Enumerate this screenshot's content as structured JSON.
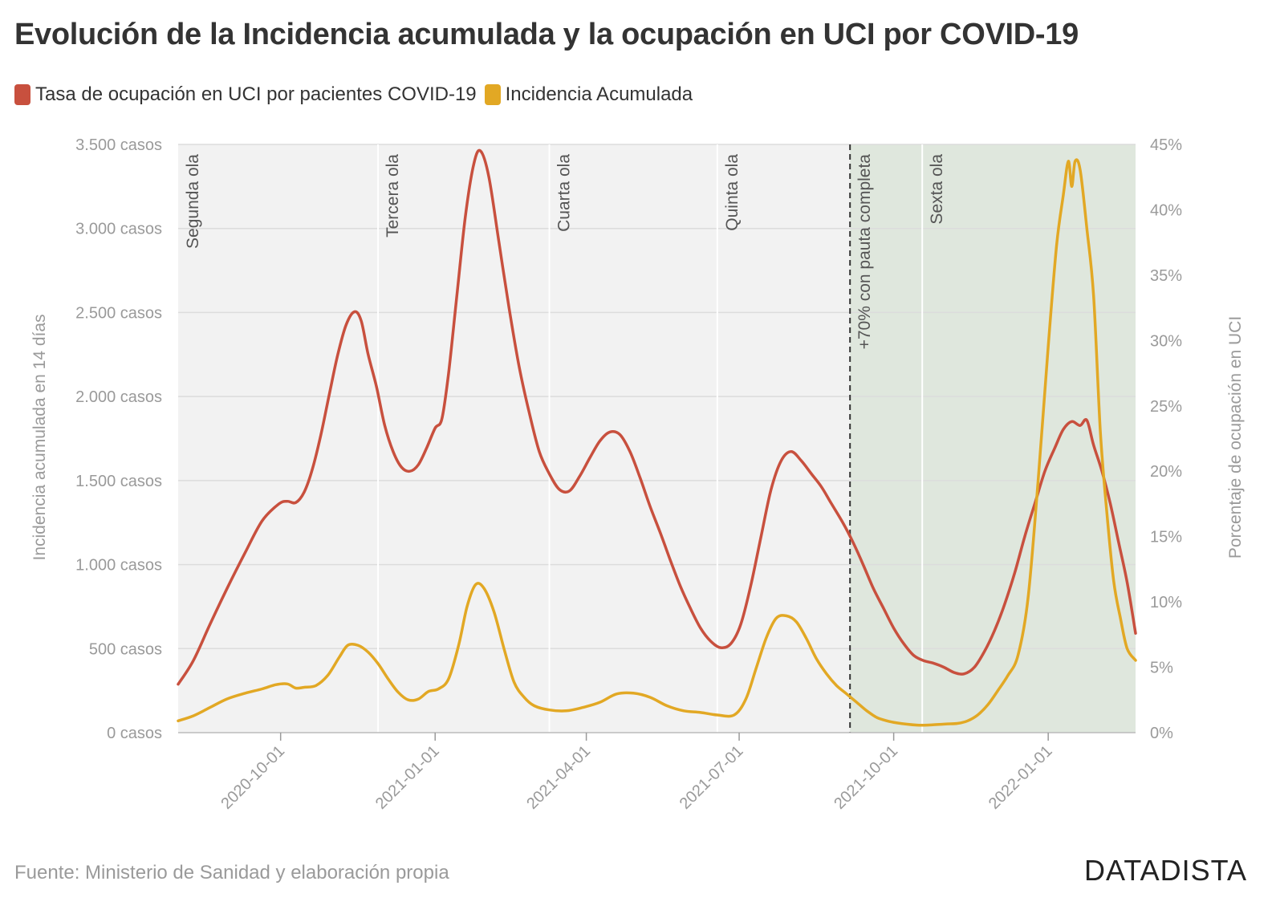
{
  "title": "Evolución de la Incidencia acumulada y la ocupación en UCI por COVID-19",
  "source": "Fuente: Ministerio de Sanidad y elaboración propia",
  "brand": "DATADISTA",
  "colors": {
    "uci": "#c8503e",
    "ia": "#e2a824",
    "plot_bg": "#f2f2f2",
    "shade_bg": "#dfe7dd",
    "grid": "#dcdcdc"
  },
  "chart_data": {
    "type": "line",
    "title": "Evolución de la Incidencia acumulada y la ocupación en UCI por COVID-19",
    "xlabel": "",
    "ylabel_left": "Incidencia acumulada en 14 días",
    "ylabel_right": "Porcentaje de ocupación en UCI",
    "xlim": [
      "2020-08-01",
      "2022-02-22"
    ],
    "ylim_left": [
      0,
      3500
    ],
    "ylim_right": [
      0,
      45
    ],
    "grid": true,
    "legend_position": "top-left",
    "x_ticks": [
      "2020-10-01",
      "2021-01-01",
      "2021-04-01",
      "2021-07-01",
      "2021-10-01",
      "2022-01-01"
    ],
    "y_ticks_left": [
      {
        "value": 0,
        "label": "0 casos"
      },
      {
        "value": 500,
        "label": "500 casos"
      },
      {
        "value": 1000,
        "label": "1.000 casos"
      },
      {
        "value": 1500,
        "label": "1.500 casos"
      },
      {
        "value": 2000,
        "label": "2.000 casos"
      },
      {
        "value": 2500,
        "label": "2.500 casos"
      },
      {
        "value": 3000,
        "label": "3.000 casos"
      },
      {
        "value": 3500,
        "label": "3.500 casos"
      }
    ],
    "y_ticks_right": [
      {
        "value": 0,
        "label": "0%"
      },
      {
        "value": 5,
        "label": "5%"
      },
      {
        "value": 10,
        "label": "10%"
      },
      {
        "value": 15,
        "label": "15%"
      },
      {
        "value": 20,
        "label": "20%"
      },
      {
        "value": 25,
        "label": "25%"
      },
      {
        "value": 30,
        "label": "30%"
      },
      {
        "value": 35,
        "label": "35%"
      },
      {
        "value": 40,
        "label": "40%"
      },
      {
        "value": 45,
        "label": "45%"
      }
    ],
    "shaded_region": {
      "start": "2021-09-05",
      "end": "2022-02-22"
    },
    "annotations": [
      {
        "date": "2020-08-01",
        "label": "Segunda ola",
        "style": "solid"
      },
      {
        "date": "2020-11-28",
        "label": "Tercera ola",
        "style": "solid"
      },
      {
        "date": "2021-03-10",
        "label": "Cuarta ola",
        "style": "solid"
      },
      {
        "date": "2021-06-18",
        "label": "Quinta ola",
        "style": "solid"
      },
      {
        "date": "2021-09-05",
        "label": "+70% con pauta completa",
        "style": "dashed"
      },
      {
        "date": "2021-10-18",
        "label": "Sexta ola",
        "style": "solid"
      }
    ],
    "series": [
      {
        "name": "Tasa de ocupación en UCI por pacientes COVID-19",
        "axis": "right",
        "color": "#c8503e",
        "points": [
          [
            "2020-08-01",
            3.7
          ],
          [
            "2020-08-10",
            5.5
          ],
          [
            "2020-08-20",
            8.3
          ],
          [
            "2020-08-30",
            11.0
          ],
          [
            "2020-09-10",
            13.8
          ],
          [
            "2020-09-20",
            16.2
          ],
          [
            "2020-09-30",
            17.5
          ],
          [
            "2020-10-05",
            17.7
          ],
          [
            "2020-10-10",
            17.6
          ],
          [
            "2020-10-15",
            18.4
          ],
          [
            "2020-10-20",
            20.2
          ],
          [
            "2020-10-25",
            22.8
          ],
          [
            "2020-10-30",
            25.9
          ],
          [
            "2020-11-04",
            28.9
          ],
          [
            "2020-11-09",
            31.2
          ],
          [
            "2020-11-14",
            32.2
          ],
          [
            "2020-11-18",
            31.5
          ],
          [
            "2020-11-22",
            29.0
          ],
          [
            "2020-11-27",
            26.5
          ],
          [
            "2020-12-02",
            23.5
          ],
          [
            "2020-12-07",
            21.5
          ],
          [
            "2020-12-12",
            20.3
          ],
          [
            "2020-12-17",
            20.0
          ],
          [
            "2020-12-22",
            20.5
          ],
          [
            "2020-12-27",
            21.8
          ],
          [
            "2021-01-01",
            23.3
          ],
          [
            "2021-01-05",
            24.0
          ],
          [
            "2021-01-09",
            27.5
          ],
          [
            "2021-01-14",
            33.5
          ],
          [
            "2021-01-19",
            39.5
          ],
          [
            "2021-01-24",
            43.5
          ],
          [
            "2021-01-28",
            44.5
          ],
          [
            "2021-02-02",
            42.5
          ],
          [
            "2021-02-08",
            37.5
          ],
          [
            "2021-02-14",
            32.5
          ],
          [
            "2021-02-20",
            28.0
          ],
          [
            "2021-02-26",
            24.5
          ],
          [
            "2021-03-04",
            21.5
          ],
          [
            "2021-03-10",
            19.8
          ],
          [
            "2021-03-16",
            18.6
          ],
          [
            "2021-03-22",
            18.5
          ],
          [
            "2021-03-28",
            19.6
          ],
          [
            "2021-04-03",
            21.0
          ],
          [
            "2021-04-09",
            22.3
          ],
          [
            "2021-04-15",
            23.0
          ],
          [
            "2021-04-21",
            22.8
          ],
          [
            "2021-04-27",
            21.5
          ],
          [
            "2021-05-03",
            19.5
          ],
          [
            "2021-05-09",
            17.3
          ],
          [
            "2021-05-15",
            15.3
          ],
          [
            "2021-05-21",
            13.2
          ],
          [
            "2021-05-27",
            11.2
          ],
          [
            "2021-06-02",
            9.5
          ],
          [
            "2021-06-08",
            8.0
          ],
          [
            "2021-06-14",
            7.0
          ],
          [
            "2021-06-20",
            6.5
          ],
          [
            "2021-06-26",
            6.8
          ],
          [
            "2021-07-02",
            8.3
          ],
          [
            "2021-07-08",
            11.3
          ],
          [
            "2021-07-14",
            15.0
          ],
          [
            "2021-07-20",
            18.6
          ],
          [
            "2021-07-26",
            20.8
          ],
          [
            "2021-08-01",
            21.5
          ],
          [
            "2021-08-07",
            20.8
          ],
          [
            "2021-08-13",
            19.8
          ],
          [
            "2021-08-19",
            18.8
          ],
          [
            "2021-08-25",
            17.5
          ],
          [
            "2021-09-01",
            16.0
          ],
          [
            "2021-09-07",
            14.5
          ],
          [
            "2021-09-13",
            12.8
          ],
          [
            "2021-09-19",
            11.0
          ],
          [
            "2021-09-25",
            9.5
          ],
          [
            "2021-10-01",
            8.0
          ],
          [
            "2021-10-07",
            6.8
          ],
          [
            "2021-10-13",
            5.9
          ],
          [
            "2021-10-19",
            5.5
          ],
          [
            "2021-10-25",
            5.3
          ],
          [
            "2021-10-31",
            5.0
          ],
          [
            "2021-11-06",
            4.6
          ],
          [
            "2021-11-12",
            4.5
          ],
          [
            "2021-11-18",
            5.0
          ],
          [
            "2021-11-24",
            6.2
          ],
          [
            "2021-11-30",
            7.8
          ],
          [
            "2021-12-06",
            9.8
          ],
          [
            "2021-12-12",
            12.2
          ],
          [
            "2021-12-18",
            15.0
          ],
          [
            "2021-12-24",
            17.5
          ],
          [
            "2021-12-30",
            20.0
          ],
          [
            "2022-01-05",
            21.8
          ],
          [
            "2022-01-10",
            23.2
          ],
          [
            "2022-01-15",
            23.8
          ],
          [
            "2022-01-20",
            23.5
          ],
          [
            "2022-01-24",
            23.9
          ],
          [
            "2022-01-28",
            22.0
          ],
          [
            "2022-02-02",
            20.0
          ],
          [
            "2022-02-07",
            17.5
          ],
          [
            "2022-02-12",
            14.5
          ],
          [
            "2022-02-17",
            11.5
          ],
          [
            "2022-02-22",
            7.6
          ]
        ]
      },
      {
        "name": "Incidencia Acumulada",
        "axis": "left",
        "color": "#e2a824",
        "points": [
          [
            "2020-08-01",
            70
          ],
          [
            "2020-08-10",
            100
          ],
          [
            "2020-08-20",
            150
          ],
          [
            "2020-08-30",
            200
          ],
          [
            "2020-09-10",
            235
          ],
          [
            "2020-09-20",
            260
          ],
          [
            "2020-09-28",
            285
          ],
          [
            "2020-10-05",
            290
          ],
          [
            "2020-10-10",
            265
          ],
          [
            "2020-10-15",
            270
          ],
          [
            "2020-10-22",
            280
          ],
          [
            "2020-10-29",
            340
          ],
          [
            "2020-11-05",
            450
          ],
          [
            "2020-11-10",
            520
          ],
          [
            "2020-11-16",
            520
          ],
          [
            "2020-11-22",
            480
          ],
          [
            "2020-11-28",
            410
          ],
          [
            "2020-12-04",
            320
          ],
          [
            "2020-12-10",
            240
          ],
          [
            "2020-12-16",
            195
          ],
          [
            "2020-12-22",
            200
          ],
          [
            "2020-12-28",
            245
          ],
          [
            "2021-01-03",
            260
          ],
          [
            "2021-01-09",
            320
          ],
          [
            "2021-01-15",
            520
          ],
          [
            "2021-01-20",
            750
          ],
          [
            "2021-01-25",
            880
          ],
          [
            "2021-01-30",
            860
          ],
          [
            "2021-02-05",
            720
          ],
          [
            "2021-02-11",
            500
          ],
          [
            "2021-02-17",
            300
          ],
          [
            "2021-02-23",
            210
          ],
          [
            "2021-03-01",
            160
          ],
          [
            "2021-03-10",
            135
          ],
          [
            "2021-03-20",
            130
          ],
          [
            "2021-03-30",
            150
          ],
          [
            "2021-04-09",
            180
          ],
          [
            "2021-04-19",
            230
          ],
          [
            "2021-04-29",
            235
          ],
          [
            "2021-05-09",
            210
          ],
          [
            "2021-05-19",
            160
          ],
          [
            "2021-05-29",
            130
          ],
          [
            "2021-06-08",
            120
          ],
          [
            "2021-06-18",
            105
          ],
          [
            "2021-06-28",
            105
          ],
          [
            "2021-07-05",
            200
          ],
          [
            "2021-07-11",
            380
          ],
          [
            "2021-07-17",
            560
          ],
          [
            "2021-07-23",
            680
          ],
          [
            "2021-07-29",
            695
          ],
          [
            "2021-08-04",
            660
          ],
          [
            "2021-08-10",
            560
          ],
          [
            "2021-08-16",
            440
          ],
          [
            "2021-08-22",
            350
          ],
          [
            "2021-08-28",
            280
          ],
          [
            "2021-09-03",
            230
          ],
          [
            "2021-09-09",
            180
          ],
          [
            "2021-09-15",
            130
          ],
          [
            "2021-09-21",
            90
          ],
          [
            "2021-09-27",
            70
          ],
          [
            "2021-10-03",
            58
          ],
          [
            "2021-10-09",
            50
          ],
          [
            "2021-10-15",
            45
          ],
          [
            "2021-10-21",
            45
          ],
          [
            "2021-10-27",
            48
          ],
          [
            "2021-11-02",
            52
          ],
          [
            "2021-11-08",
            55
          ],
          [
            "2021-11-14",
            70
          ],
          [
            "2021-11-20",
            105
          ],
          [
            "2021-11-26",
            165
          ],
          [
            "2021-12-02",
            250
          ],
          [
            "2021-12-08",
            340
          ],
          [
            "2021-12-14",
            460
          ],
          [
            "2021-12-20",
            800
          ],
          [
            "2021-12-26",
            1500
          ],
          [
            "2022-01-01",
            2300
          ],
          [
            "2022-01-06",
            2900
          ],
          [
            "2022-01-10",
            3200
          ],
          [
            "2022-01-13",
            3400
          ],
          [
            "2022-01-15",
            3250
          ],
          [
            "2022-01-17",
            3400
          ],
          [
            "2022-01-20",
            3350
          ],
          [
            "2022-01-24",
            3000
          ],
          [
            "2022-01-28",
            2600
          ],
          [
            "2022-02-01",
            1800
          ],
          [
            "2022-02-05",
            1300
          ],
          [
            "2022-02-09",
            900
          ],
          [
            "2022-02-13",
            680
          ],
          [
            "2022-02-17",
            500
          ],
          [
            "2022-02-22",
            430
          ]
        ]
      }
    ]
  }
}
